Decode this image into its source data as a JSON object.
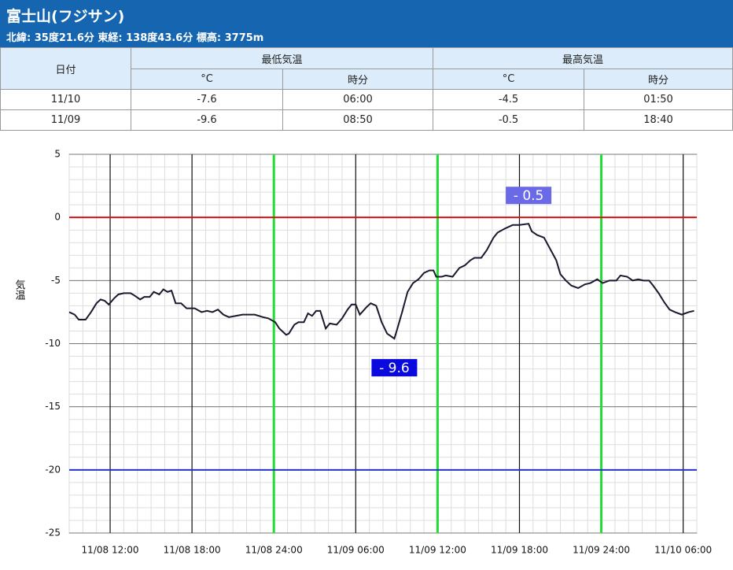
{
  "header": {
    "title": "富士山(フジサン)",
    "subtitle": "北緯: 35度21.6分 東経: 138度43.6分 標高: 3775m"
  },
  "table": {
    "header": [
      "日付",
      "最低気温",
      "最高気温"
    ],
    "subheader": [
      "°C",
      "時分",
      "°C",
      "時分"
    ],
    "rows": [
      [
        "11/10",
        -7.6,
        "06:00",
        -4.5,
        "01:50"
      ],
      [
        "11/09",
        -9.6,
        "08:50",
        -0.5,
        "18:40"
      ]
    ]
  },
  "chart_data": {
    "type": "line",
    "ylabel": "気温",
    "x": [
      9.0,
      9.4,
      9.7,
      10.2,
      10.6,
      11.0,
      11.3,
      11.6,
      11.9,
      12.3,
      12.6,
      13.0,
      13.5,
      13.8,
      14.2,
      14.5,
      14.9,
      15.2,
      15.6,
      15.9,
      16.2,
      16.5,
      16.8,
      17.2,
      17.6,
      18.2,
      18.7,
      19.1,
      19.5,
      19.9,
      20.3,
      20.7,
      21.2,
      21.7,
      22.1,
      22.6,
      23.2,
      23.6,
      24.1,
      24.4,
      24.9,
      25.1,
      25.5,
      25.8,
      26.2,
      26.5,
      26.8,
      27.1,
      27.4,
      27.8,
      28.1,
      28.6,
      29.0,
      29.4,
      29.7,
      30.0,
      30.3,
      30.8,
      31.1,
      31.5,
      31.9,
      32.3,
      32.83,
      33.0,
      33.4,
      33.8,
      34.2,
      34.6,
      35.0,
      35.4,
      35.7,
      35.9,
      36.3,
      36.6,
      37.1,
      37.6,
      38.0,
      38.4,
      38.7,
      39.2,
      39.6,
      40.1,
      40.4,
      40.9,
      41.5,
      42.0,
      42.67,
      42.9,
      43.3,
      43.8,
      44.2,
      44.7,
      45.0,
      45.4,
      45.8,
      46.3,
      46.8,
      47.2,
      47.7,
      48.1,
      48.6,
      49.1,
      49.4,
      49.9,
      50.3,
      50.7,
      51.1,
      51.5,
      51.8,
      52.2,
      52.6,
      53.0,
      53.4,
      53.9,
      54.4,
      54.8
    ],
    "series": [
      {
        "name": "気温",
        "color": "#1a1a2e",
        "values": [
          -7.5,
          -7.7,
          -8.1,
          -8.1,
          -7.5,
          -6.8,
          -6.5,
          -6.6,
          -6.9,
          -6.4,
          -6.1,
          -6.0,
          -6.0,
          -6.2,
          -6.5,
          -6.3,
          -6.3,
          -5.9,
          -6.1,
          -5.7,
          -5.9,
          -5.8,
          -6.8,
          -6.8,
          -7.2,
          -7.2,
          -7.5,
          -7.4,
          -7.5,
          -7.3,
          -7.7,
          -7.9,
          -7.8,
          -7.7,
          -7.7,
          -7.7,
          -7.9,
          -8.0,
          -8.3,
          -8.8,
          -9.3,
          -9.2,
          -8.5,
          -8.3,
          -8.3,
          -7.6,
          -7.8,
          -7.4,
          -7.4,
          -8.8,
          -8.4,
          -8.5,
          -8.0,
          -7.3,
          -6.9,
          -6.9,
          -7.7,
          -7.1,
          -6.8,
          -7.0,
          -8.3,
          -9.2,
          -9.6,
          -9.0,
          -7.5,
          -5.9,
          -5.2,
          -4.9,
          -4.4,
          -4.2,
          -4.2,
          -4.7,
          -4.7,
          -4.6,
          -4.7,
          -4.0,
          -3.8,
          -3.4,
          -3.2,
          -3.2,
          -2.6,
          -1.6,
          -1.2,
          -0.9,
          -0.6,
          -0.6,
          -0.5,
          -1.1,
          -1.4,
          -1.6,
          -2.4,
          -3.4,
          -4.5,
          -5.0,
          -5.4,
          -5.6,
          -5.3,
          -5.2,
          -4.9,
          -5.2,
          -5.0,
          -5.0,
          -4.6,
          -4.7,
          -5.0,
          -4.9,
          -5.0,
          -5.0,
          -5.4,
          -6.0,
          -6.7,
          -7.3,
          -7.5,
          -7.7,
          -7.5,
          -7.4
        ]
      }
    ],
    "xlim": [
      9,
      55
    ],
    "xticks": [
      {
        "value": 12,
        "label": "11/08 12:00"
      },
      {
        "value": 18,
        "label": "11/08 18:00"
      },
      {
        "value": 24,
        "label": "11/08 24:00"
      },
      {
        "value": 30,
        "label": "11/09 06:00"
      },
      {
        "value": 36,
        "label": "11/09 12:00"
      },
      {
        "value": 42,
        "label": "11/09 18:00"
      },
      {
        "value": 48,
        "label": "11/09 24:00"
      },
      {
        "value": 54,
        "label": "11/10 06:00"
      }
    ],
    "xgrid_colors": [
      "#111",
      "#111",
      "#22dd33",
      "#111",
      "#22dd33",
      "#111",
      "#22dd33",
      "#111"
    ],
    "ylim": [
      -25,
      5
    ],
    "yticks": [
      -25,
      -20,
      -15,
      -10,
      -5,
      0,
      5
    ],
    "grid": true,
    "reference_lines": [
      {
        "value": 0,
        "color": "#dd1111"
      },
      {
        "value": -20,
        "color": "#2233cc"
      }
    ],
    "annotations": [
      {
        "text": "- 0.5",
        "x": 42.67,
        "y": -0.5,
        "color": "#6a6ae8",
        "position": "above"
      },
      {
        "text": "- 9.6",
        "x": 32.83,
        "y": -9.6,
        "color": "#0a0adf",
        "position": "below"
      }
    ]
  }
}
